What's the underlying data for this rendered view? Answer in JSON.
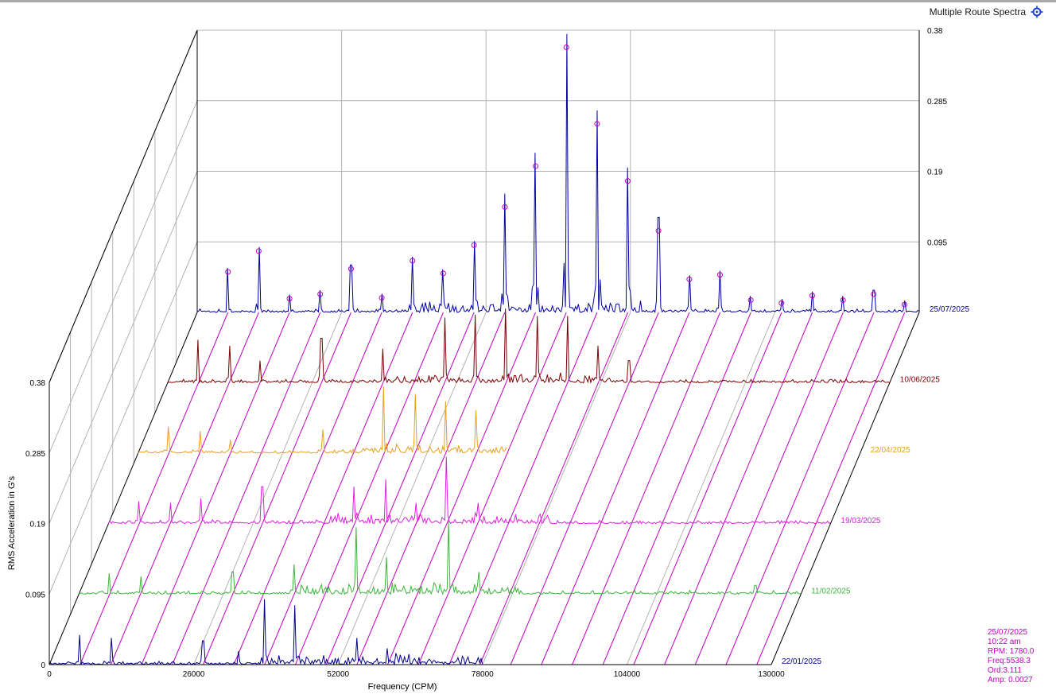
{
  "header": {
    "title": "Multiple Route Spectra",
    "icon": "target-crosshair-icon"
  },
  "info": {
    "date": "25/07/2025",
    "time": "10:22 am",
    "rpm": "RPM: 1780.0",
    "freq": "Freq:5538.3",
    "ord": "Ord:3.111",
    "amp": "Amp: 0.0027",
    "color": "#c000c0"
  },
  "chart_data": {
    "type": "line",
    "xlabel": "Frequency (CPM)",
    "ylabel": "RMS Acceleration in G's",
    "xlim": [
      0,
      130000
    ],
    "ylim": [
      0,
      0.38
    ],
    "x_ticks": [
      "0",
      "26000",
      "52000",
      "78000",
      "104000",
      "130000"
    ],
    "y_ticks": [
      "0",
      "0.095",
      "0.19",
      "0.285",
      "0.38"
    ],
    "grid": true,
    "harmonic_markers": {
      "color": "#c000c0",
      "fundamental_cpm": 5538.3,
      "markers_on_series": "25/07/2025"
    },
    "series": [
      {
        "name": "22/01/2025",
        "color": "#00008b",
        "extent": 78000,
        "peaks": [
          [
            5540,
            0.04
          ],
          [
            11076,
            0.036
          ],
          [
            27700,
            0.032
          ],
          [
            34000,
            0.018
          ],
          [
            38770,
            0.088
          ],
          [
            44300,
            0.08
          ],
          [
            55400,
            0.036
          ],
          [
            60930,
            0.022
          ],
          [
            66460,
            0.01
          ]
        ]
      },
      {
        "name": "11/02/2025",
        "color": "#3cb53c",
        "extent": 130000,
        "peaks": [
          [
            5540,
            0.028
          ],
          [
            11076,
            0.024
          ],
          [
            27700,
            0.03
          ],
          [
            38770,
            0.04
          ],
          [
            49840,
            0.09
          ],
          [
            55400,
            0.05
          ],
          [
            66460,
            0.098
          ],
          [
            72000,
            0.03
          ],
          [
            121800,
            0.012
          ]
        ]
      },
      {
        "name": "19/03/2025",
        "color": "#e020e0",
        "extent": 130000,
        "peaks": [
          [
            5540,
            0.03
          ],
          [
            11076,
            0.028
          ],
          [
            16614,
            0.034
          ],
          [
            27700,
            0.05
          ],
          [
            44300,
            0.05
          ],
          [
            49840,
            0.06
          ],
          [
            55400,
            0.028
          ],
          [
            60930,
            0.09
          ],
          [
            66460,
            0.028
          ],
          [
            77520,
            0.01
          ]
        ]
      },
      {
        "name": "22/04/2025",
        "color": "#e8a020",
        "extent": 66460,
        "peaks": [
          [
            5540,
            0.036
          ],
          [
            11076,
            0.03
          ],
          [
            16614,
            0.018
          ],
          [
            33230,
            0.032
          ],
          [
            44300,
            0.09
          ],
          [
            49840,
            0.08
          ],
          [
            55400,
            0.07
          ],
          [
            60930,
            0.058
          ],
          [
            66460,
            0.03
          ]
        ]
      },
      {
        "name": "10/06/2025",
        "color": "#7a0000",
        "extent": 130000,
        "peaks": [
          [
            5540,
            0.058
          ],
          [
            11076,
            0.05
          ],
          [
            16614,
            0.03
          ],
          [
            27700,
            0.06
          ],
          [
            38770,
            0.046
          ],
          [
            49840,
            0.088
          ],
          [
            55400,
            0.092
          ],
          [
            60930,
            0.1
          ],
          [
            66460,
            0.09
          ],
          [
            72000,
            0.09
          ],
          [
            77520,
            0.05
          ],
          [
            83060,
            0.03
          ]
        ]
      },
      {
        "name": "25/07/2025",
        "color": "#0000a0",
        "extent": 130000,
        "peaks": [
          [
            5540,
            0.06
          ],
          [
            11076,
            0.088
          ],
          [
            16614,
            0.024
          ],
          [
            22150,
            0.03
          ],
          [
            27700,
            0.064
          ],
          [
            33230,
            0.025
          ],
          [
            38770,
            0.075
          ],
          [
            44300,
            0.058
          ],
          [
            49840,
            0.096
          ],
          [
            55400,
            0.16
          ],
          [
            60930,
            0.215
          ],
          [
            66460,
            0.375
          ],
          [
            72000,
            0.272
          ],
          [
            77520,
            0.195
          ],
          [
            83060,
            0.128
          ],
          [
            88600,
            0.05
          ],
          [
            94130,
            0.056
          ],
          [
            99670,
            0.022
          ],
          [
            105200,
            0.018
          ],
          [
            110740,
            0.028
          ],
          [
            116280,
            0.022
          ],
          [
            121800,
            0.03
          ],
          [
            127340,
            0.016
          ]
        ]
      }
    ]
  }
}
